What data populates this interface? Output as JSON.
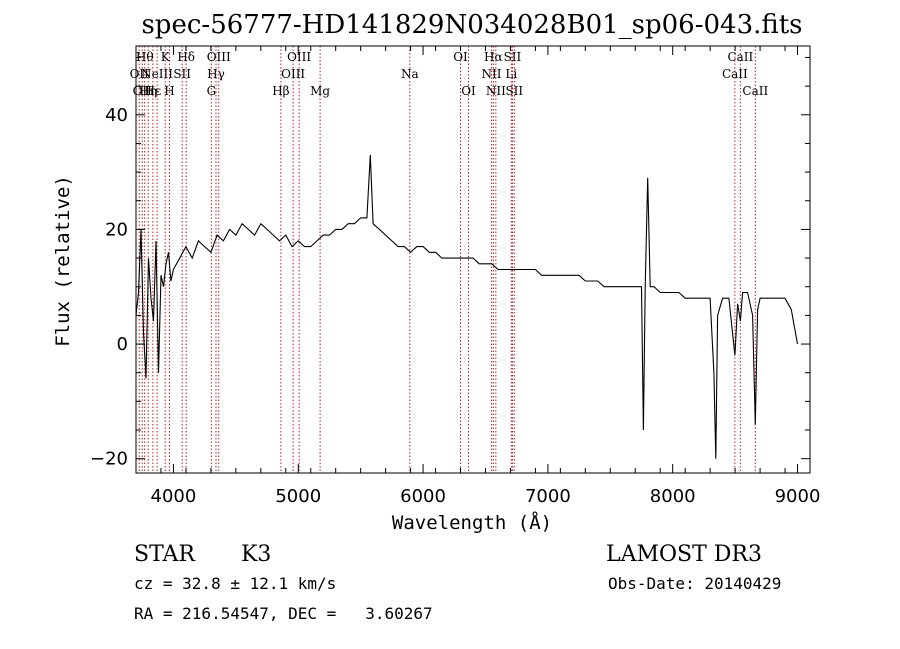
{
  "chart_data": {
    "type": "line",
    "title": "spec-56777-HD141829N034028B01_sp06-043.fits",
    "xlabel": "Wavelength (Å)",
    "ylabel": "Flux (relative)",
    "xlim": [
      3700,
      9100
    ],
    "ylim": [
      -22.5,
      52
    ],
    "xticks": [
      4000,
      5000,
      6000,
      7000,
      8000,
      9000
    ],
    "yticks": [
      -20,
      0,
      20,
      40
    ],
    "series": [
      {
        "name": "spectrum",
        "x": [
          3700,
          3720,
          3740,
          3760,
          3780,
          3800,
          3820,
          3840,
          3860,
          3880,
          3900,
          3920,
          3940,
          3960,
          3980,
          4000,
          4050,
          4100,
          4150,
          4200,
          4250,
          4300,
          4350,
          4400,
          4450,
          4500,
          4550,
          4600,
          4650,
          4700,
          4750,
          4800,
          4850,
          4900,
          4950,
          5000,
          5050,
          5100,
          5150,
          5200,
          5250,
          5300,
          5350,
          5400,
          5450,
          5500,
          5550,
          5577,
          5600,
          5650,
          5700,
          5750,
          5800,
          5850,
          5900,
          5950,
          6000,
          6050,
          6100,
          6150,
          6200,
          6250,
          6300,
          6350,
          6400,
          6450,
          6500,
          6550,
          6600,
          6650,
          6700,
          6750,
          6800,
          6850,
          6900,
          6950,
          7000,
          7050,
          7100,
          7150,
          7200,
          7250,
          7300,
          7350,
          7400,
          7450,
          7500,
          7550,
          7600,
          7650,
          7700,
          7750,
          7765,
          7780,
          7800,
          7820,
          7850,
          7900,
          7950,
          8000,
          8050,
          8100,
          8150,
          8200,
          8250,
          8300,
          8330,
          8345,
          8360,
          8400,
          8450,
          8498,
          8520,
          8542,
          8560,
          8600,
          8640,
          8662,
          8680,
          8700,
          8750,
          8800,
          8850,
          8900,
          8950,
          9000
        ],
        "values": [
          5,
          9,
          20,
          2,
          -6,
          15,
          8,
          4,
          18,
          -5,
          12,
          10,
          14,
          16,
          11,
          13,
          15,
          17,
          15,
          18,
          17,
          16,
          19,
          18,
          20,
          19,
          21,
          20,
          19,
          21,
          20,
          19,
          18,
          19,
          17,
          18,
          17,
          17,
          18,
          19,
          19,
          20,
          20,
          21,
          21,
          22,
          22,
          33,
          21,
          20,
          19,
          18,
          17,
          17,
          16,
          17,
          17,
          16,
          16,
          15,
          15,
          15,
          15,
          15,
          15,
          14,
          14,
          14,
          13,
          13,
          13,
          13,
          13,
          13,
          13,
          12,
          12,
          12,
          12,
          12,
          12,
          12,
          11,
          11,
          11,
          10,
          10,
          10,
          10,
          10,
          10,
          10,
          -15,
          10,
          29,
          10,
          10,
          9,
          9,
          9,
          9,
          8,
          8,
          8,
          8,
          8,
          -5,
          -20,
          5,
          8,
          8,
          -2,
          7,
          4,
          9,
          9,
          5,
          -14,
          6,
          8,
          8,
          8,
          8,
          8,
          6,
          0
        ],
        "color": "#000000"
      }
    ],
    "line_markers": [
      {
        "wavelength": 3726,
        "label": "OII",
        "row": 1
      },
      {
        "wavelength": 3750,
        "label": "OII",
        "row": 2
      },
      {
        "wavelength": 3770,
        "label": "Hθ",
        "row": 0
      },
      {
        "wavelength": 3798,
        "label": "Hη",
        "row": 2
      },
      {
        "wavelength": 3835,
        "label": "Hε",
        "row": 2
      },
      {
        "wavelength": 3869,
        "label": "NeIII",
        "row": 1
      },
      {
        "wavelength": 3934,
        "label": "K",
        "row": 0
      },
      {
        "wavelength": 3968,
        "label": "H",
        "row": 2
      },
      {
        "wavelength": 4070,
        "label": "SII",
        "row": 1
      },
      {
        "wavelength": 4102,
        "label": "Hδ",
        "row": 0
      },
      {
        "wavelength": 4304,
        "label": "G",
        "row": 2
      },
      {
        "wavelength": 4341,
        "label": "Hγ",
        "row": 1
      },
      {
        "wavelength": 4363,
        "label": "OIII",
        "row": 0
      },
      {
        "wavelength": 4861,
        "label": "Hβ",
        "row": 2
      },
      {
        "wavelength": 4959,
        "label": "OIII",
        "row": 1
      },
      {
        "wavelength": 5007,
        "label": "OIII",
        "row": 0
      },
      {
        "wavelength": 5175,
        "label": "Mg",
        "row": 2
      },
      {
        "wavelength": 5894,
        "label": "Na",
        "row": 1
      },
      {
        "wavelength": 6300,
        "label": "OI",
        "row": 0
      },
      {
        "wavelength": 6364,
        "label": "OI",
        "row": 2
      },
      {
        "wavelength": 6548,
        "label": "NII",
        "row": 1
      },
      {
        "wavelength": 6563,
        "label": "Hα",
        "row": 0
      },
      {
        "wavelength": 6583,
        "label": "NII",
        "row": 2
      },
      {
        "wavelength": 6707,
        "label": "Li",
        "row": 1
      },
      {
        "wavelength": 6716,
        "label": "SII",
        "row": 0
      },
      {
        "wavelength": 6731,
        "label": "SII",
        "row": 2
      },
      {
        "wavelength": 8498,
        "label": "CaII",
        "row": 1
      },
      {
        "wavelength": 8542,
        "label": "CaII",
        "row": 0
      },
      {
        "wavelength": 8662,
        "label": "CaII",
        "row": 2
      }
    ]
  },
  "footer": {
    "object_class": "STAR",
    "subclass": "K3",
    "survey": "LAMOST DR3",
    "redshift": "cz = 32.8 ± 12.1 km/s",
    "obs_date": "Obs-Date: 20140429",
    "coords": "RA = 216.54547, DEC =   3.60267"
  },
  "colors": {
    "spectrum": "#000000",
    "marker": "#b22222",
    "axis": "#000000"
  }
}
